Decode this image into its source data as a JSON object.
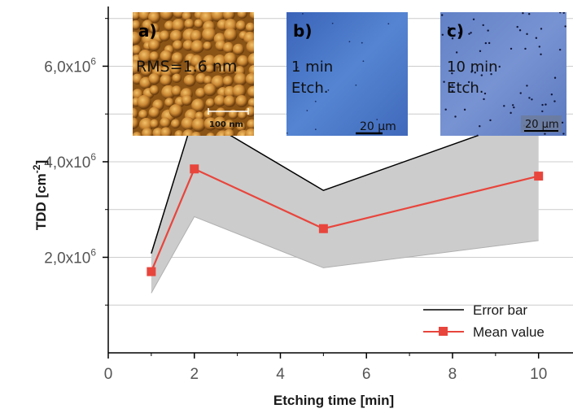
{
  "chart_data": {
    "type": "line",
    "x": [
      1,
      2,
      5,
      10
    ],
    "series": [
      {
        "name": "Mean value",
        "values": [
          1.7,
          3.85,
          2.6,
          3.7
        ],
        "color": "#e8453c"
      }
    ],
    "error_band": {
      "name": "Error bar",
      "upper": [
        2.08,
        5.0,
        3.4,
        5.0
      ],
      "lower": [
        1.25,
        2.85,
        1.78,
        2.35
      ],
      "fill": "#cccccc",
      "stroke": "#000000"
    },
    "xlabel": "Etching time [min]",
    "ylabel": "TDD [cm",
    "ylabel_exp": "-2",
    "ylabel_close": "]",
    "xlim": [
      0,
      10.8
    ],
    "ylim": [
      0,
      7.25
    ],
    "y_scale_note": "values in units of 10^6 cm^-2",
    "x_ticks": [
      "0",
      "2",
      "4",
      "6",
      "8",
      "10"
    ],
    "y_ticks": [
      {
        "mantissa": "2,0x10",
        "exp": "6"
      },
      {
        "mantissa": "4,0x10",
        "exp": "6"
      },
      {
        "mantissa": "6,0x10",
        "exp": "6"
      }
    ],
    "grid": true,
    "legend_position": "bottom-right",
    "legend": [
      {
        "label": "Error bar",
        "style": "line"
      },
      {
        "label": "Mean value",
        "style": "line-square"
      }
    ]
  },
  "insets": [
    {
      "letter": "a)",
      "line1": "RMS=1.6 nm",
      "line2": "",
      "scale": "100 nm",
      "kind": "afm"
    },
    {
      "letter": "b)",
      "line1": "1 min",
      "line2": "Etch.",
      "scale": "20 µm",
      "kind": "micro1"
    },
    {
      "letter": "c)",
      "line1": "10 min",
      "line2": "Etch.",
      "scale": "20 µm",
      "kind": "micro10"
    }
  ],
  "colors": {
    "afm_base": "#b8772a",
    "micro_base": "#4a78c8",
    "micro10_base": "#6a86cc",
    "grid": "#cccccc"
  }
}
